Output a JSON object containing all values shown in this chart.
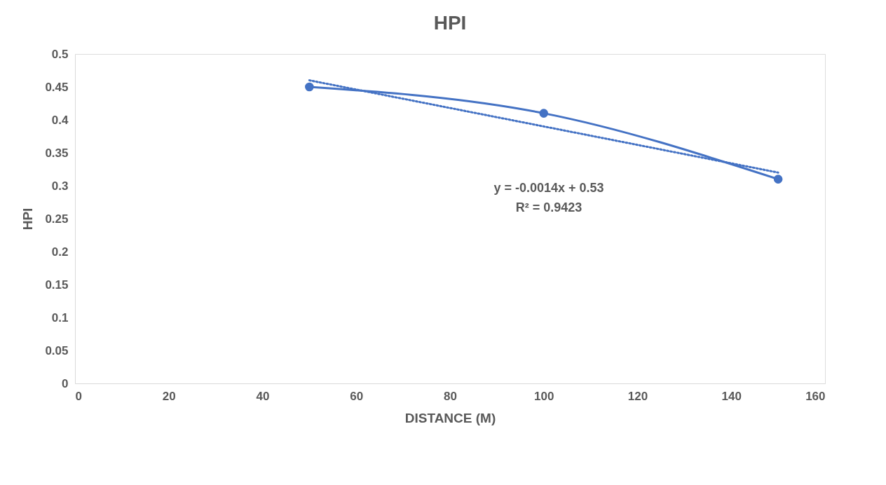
{
  "chart_data": {
    "type": "line",
    "title": "HPI",
    "xlabel": "DISTANCE (M)",
    "ylabel": "HPI",
    "xlim": [
      0,
      160
    ],
    "xticks": [
      0,
      20,
      40,
      60,
      80,
      100,
      120,
      140,
      160
    ],
    "ylim": [
      0,
      0.5
    ],
    "yticks": [
      0,
      0.05,
      0.1,
      0.15,
      0.2,
      0.25,
      0.3,
      0.35,
      0.4,
      0.45,
      0.5
    ],
    "grid": false,
    "series": [
      {
        "color": "#4472c4",
        "x": [
          50,
          100,
          150
        ],
        "values": [
          0.45,
          0.41,
          0.31
        ],
        "marker": "circle",
        "line_style": "solid"
      },
      {
        "color": "#4472c4",
        "x": [
          50,
          150
        ],
        "values": [
          0.46,
          0.32
        ],
        "marker": "none",
        "line_style": "dotted"
      }
    ],
    "annotations": [
      "y = -0.0014x + 0.53",
      "R² = 0.9423"
    ]
  }
}
